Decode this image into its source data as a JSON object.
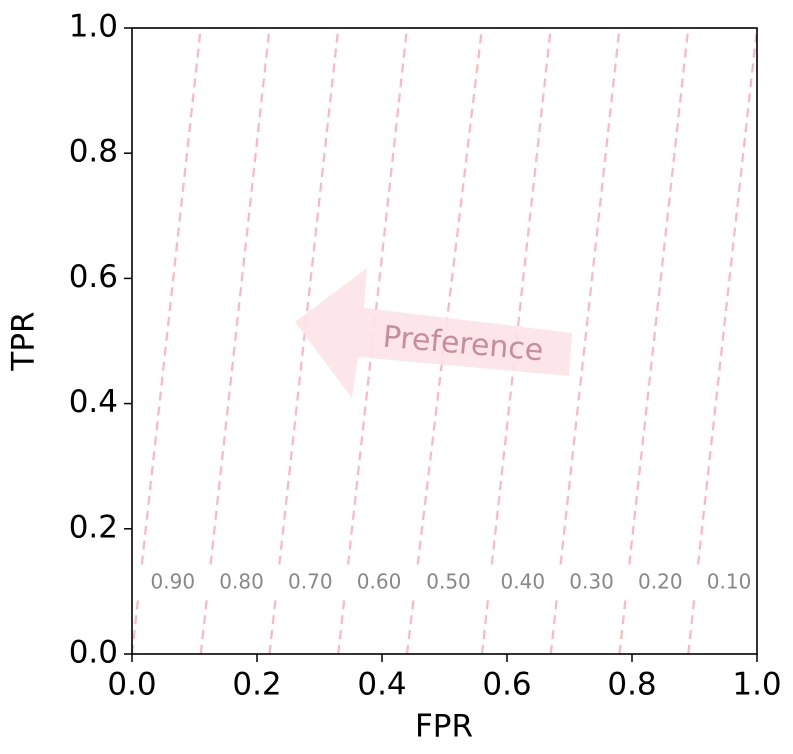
{
  "chart_data": {
    "type": "line",
    "xlabel": "FPR",
    "ylabel": "TPR",
    "xlim": [
      0,
      1
    ],
    "ylim": [
      0,
      1
    ],
    "xticks": [
      {
        "value": 0,
        "label": "0.0"
      },
      0.2,
      0.4,
      0.6,
      0.8,
      {
        "value": 1,
        "label": "1.0"
      }
    ],
    "yticks": [
      {
        "value": 0,
        "label": "0.0"
      },
      0.2,
      0.4,
      0.6,
      0.8,
      {
        "value": 1,
        "label": "1.0"
      }
    ],
    "color": "#ffb6c1",
    "annotation": "Preference",
    "series": [
      {
        "name": "0.90",
        "x": [
          0,
          0.11
        ],
        "y": [
          0,
          1
        ]
      },
      {
        "name": "0.80",
        "x": [
          0.11,
          0.22
        ],
        "y": [
          0,
          1
        ]
      },
      {
        "name": "0.70",
        "x": [
          0.22,
          0.33
        ],
        "y": [
          0,
          1
        ]
      },
      {
        "name": "0.60",
        "x": [
          0.33,
          0.44
        ],
        "y": [
          0,
          1
        ]
      },
      {
        "name": "0.50",
        "x": [
          0.44,
          0.56
        ],
        "y": [
          0,
          1
        ]
      },
      {
        "name": "0.40",
        "x": [
          0.56,
          0.67
        ],
        "y": [
          0,
          1
        ]
      },
      {
        "name": "0.30",
        "x": [
          0.67,
          0.78
        ],
        "y": [
          0,
          1
        ]
      },
      {
        "name": "0.20",
        "x": [
          0.78,
          0.89
        ],
        "y": [
          0,
          1
        ]
      },
      {
        "name": "0.10",
        "x": [
          0.89,
          1.0
        ],
        "y": [
          0,
          1
        ]
      }
    ]
  }
}
